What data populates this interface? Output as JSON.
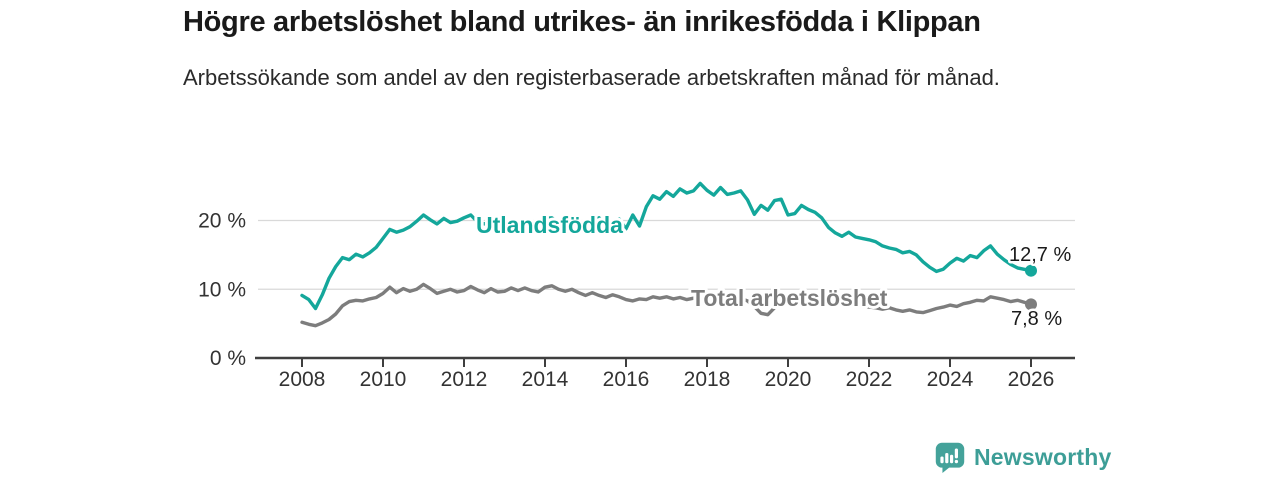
{
  "title": "Högre arbetslöshet bland utrikes- än inrikesfödda i Klippan",
  "subtitle": "Arbetssökande som andel av den registerbaserade arbetskraften månad för månad.",
  "footer": {
    "brand": "Newsworthy",
    "brand_color": "#3d9e97",
    "logo_icon": "bar-chart-speech-bubble-icon"
  },
  "chart_data": {
    "type": "line",
    "title": "Högre arbetslöshet bland utrikes- än inrikesfödda i Klippan",
    "xlabel": "",
    "ylabel": "",
    "x_start": 2008,
    "x_interval_months": 2,
    "x_end": 2026,
    "xlim": [
      2006.85,
      2027.1
    ],
    "ylim": [
      0,
      27
    ],
    "grid": "horizontal",
    "x_ticks": [
      2008,
      2010,
      2012,
      2014,
      2016,
      2018,
      2020,
      2022,
      2024,
      2026
    ],
    "y_ticks": [
      0,
      10,
      20
    ],
    "y_tick_labels": [
      "0 %",
      "10 %",
      "20 %"
    ],
    "colors": {
      "grid": "#d9d9d9",
      "axis": "#3f3f3f",
      "tick_text": "#333333",
      "value_label": "#1a1a1a"
    },
    "series": [
      {
        "name": "Utlandsfödda",
        "color": "#14a79b",
        "end_label": "12,7 %",
        "end_value": 12.7,
        "values": [
          9.1,
          8.5,
          7.2,
          9.2,
          11.6,
          13.3,
          14.6,
          14.3,
          15.1,
          14.7,
          15.3,
          16.1,
          17.4,
          18.7,
          18.3,
          18.6,
          19.1,
          19.9,
          20.8,
          20.1,
          19.5,
          20.3,
          19.7,
          19.9,
          20.4,
          20.8,
          19.8,
          19.5,
          19.9,
          19.4,
          19.5,
          20.0,
          19.6,
          19.9,
          19.3,
          19.7,
          20.3,
          20.4,
          19.7,
          19.4,
          19.7,
          19.2,
          19.3,
          19.8,
          20.4,
          19.5,
          19.0,
          20.2,
          18.8,
          20.8,
          19.2,
          22.0,
          23.6,
          23.1,
          24.2,
          23.5,
          24.6,
          24.0,
          24.3,
          25.4,
          24.4,
          23.7,
          24.8,
          23.8,
          24.0,
          24.3,
          23.0,
          20.9,
          22.2,
          21.5,
          22.9,
          23.1,
          20.8,
          21.0,
          22.2,
          21.6,
          21.2,
          20.4,
          19.0,
          18.2,
          17.7,
          18.3,
          17.6,
          17.4,
          17.2,
          16.9,
          16.3,
          16.0,
          15.8,
          15.3,
          15.5,
          15.0,
          14.0,
          13.2,
          12.6,
          12.9,
          13.8,
          14.5,
          14.1,
          14.9,
          14.6,
          15.6,
          16.3,
          15.1,
          14.3,
          13.6,
          13.1,
          12.9,
          12.7
        ]
      },
      {
        "name": "Total arbetslöshet",
        "color": "#7d7d7d",
        "end_label": "7,8 %",
        "end_value": 7.8,
        "values": [
          5.2,
          4.9,
          4.7,
          5.1,
          5.6,
          6.4,
          7.6,
          8.2,
          8.4,
          8.3,
          8.6,
          8.8,
          9.4,
          10.3,
          9.5,
          10.1,
          9.7,
          10.0,
          10.7,
          10.1,
          9.4,
          9.7,
          10.0,
          9.6,
          9.8,
          10.4,
          9.9,
          9.5,
          10.1,
          9.6,
          9.7,
          10.2,
          9.8,
          10.2,
          9.8,
          9.6,
          10.3,
          10.5,
          10.0,
          9.7,
          10.0,
          9.5,
          9.1,
          9.5,
          9.1,
          8.8,
          9.2,
          8.9,
          8.5,
          8.3,
          8.6,
          8.5,
          8.9,
          8.7,
          8.9,
          8.6,
          8.8,
          8.5,
          8.7,
          8.8,
          8.6,
          8.3,
          8.6,
          8.3,
          8.5,
          8.7,
          8.3,
          7.5,
          6.5,
          6.3,
          7.3,
          8.1,
          8.5,
          8.9,
          9.3,
          9.1,
          8.9,
          8.7,
          8.5,
          8.3,
          8.1,
          7.9,
          7.7,
          7.5,
          7.4,
          7.3,
          7.1,
          7.3,
          7.0,
          6.8,
          7.0,
          6.7,
          6.6,
          6.9,
          7.2,
          7.4,
          7.7,
          7.5,
          7.9,
          8.1,
          8.4,
          8.3,
          8.9,
          8.7,
          8.5,
          8.2,
          8.4,
          8.1,
          7.8
        ]
      }
    ],
    "legend_position": "inline-labels"
  }
}
